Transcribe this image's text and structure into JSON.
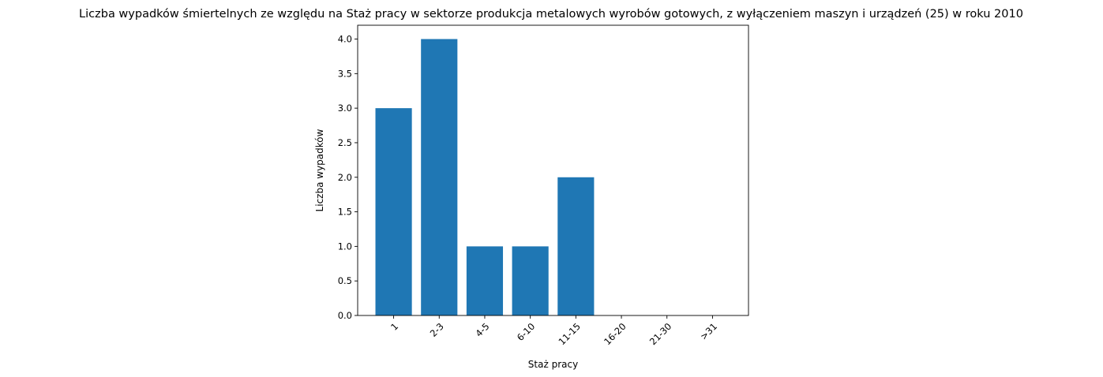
{
  "chart_data": {
    "type": "bar",
    "title": "Liczba wypadków śmiertelnych ze względu na Staż pracy w sektorze produkcja metalowych wyrobów gotowych, z wyłączeniem maszyn i urządzeń (25) w roku 2010",
    "xlabel": "Staż pracy",
    "ylabel": "Liczba wypadków",
    "categories": [
      "1",
      "2-3",
      "4-5",
      "6-10",
      "11-15",
      "16-20",
      "21-30",
      ">31"
    ],
    "values": [
      3,
      4,
      1,
      1,
      2,
      0,
      0,
      0
    ],
    "ylim": [
      0,
      4.2
    ],
    "yticks": [
      "0.0",
      "0.5",
      "1.0",
      "1.5",
      "2.0",
      "2.5",
      "3.0",
      "3.5",
      "4.0"
    ],
    "bar_color": "#1f77b4",
    "grid": false,
    "legend": false
  }
}
